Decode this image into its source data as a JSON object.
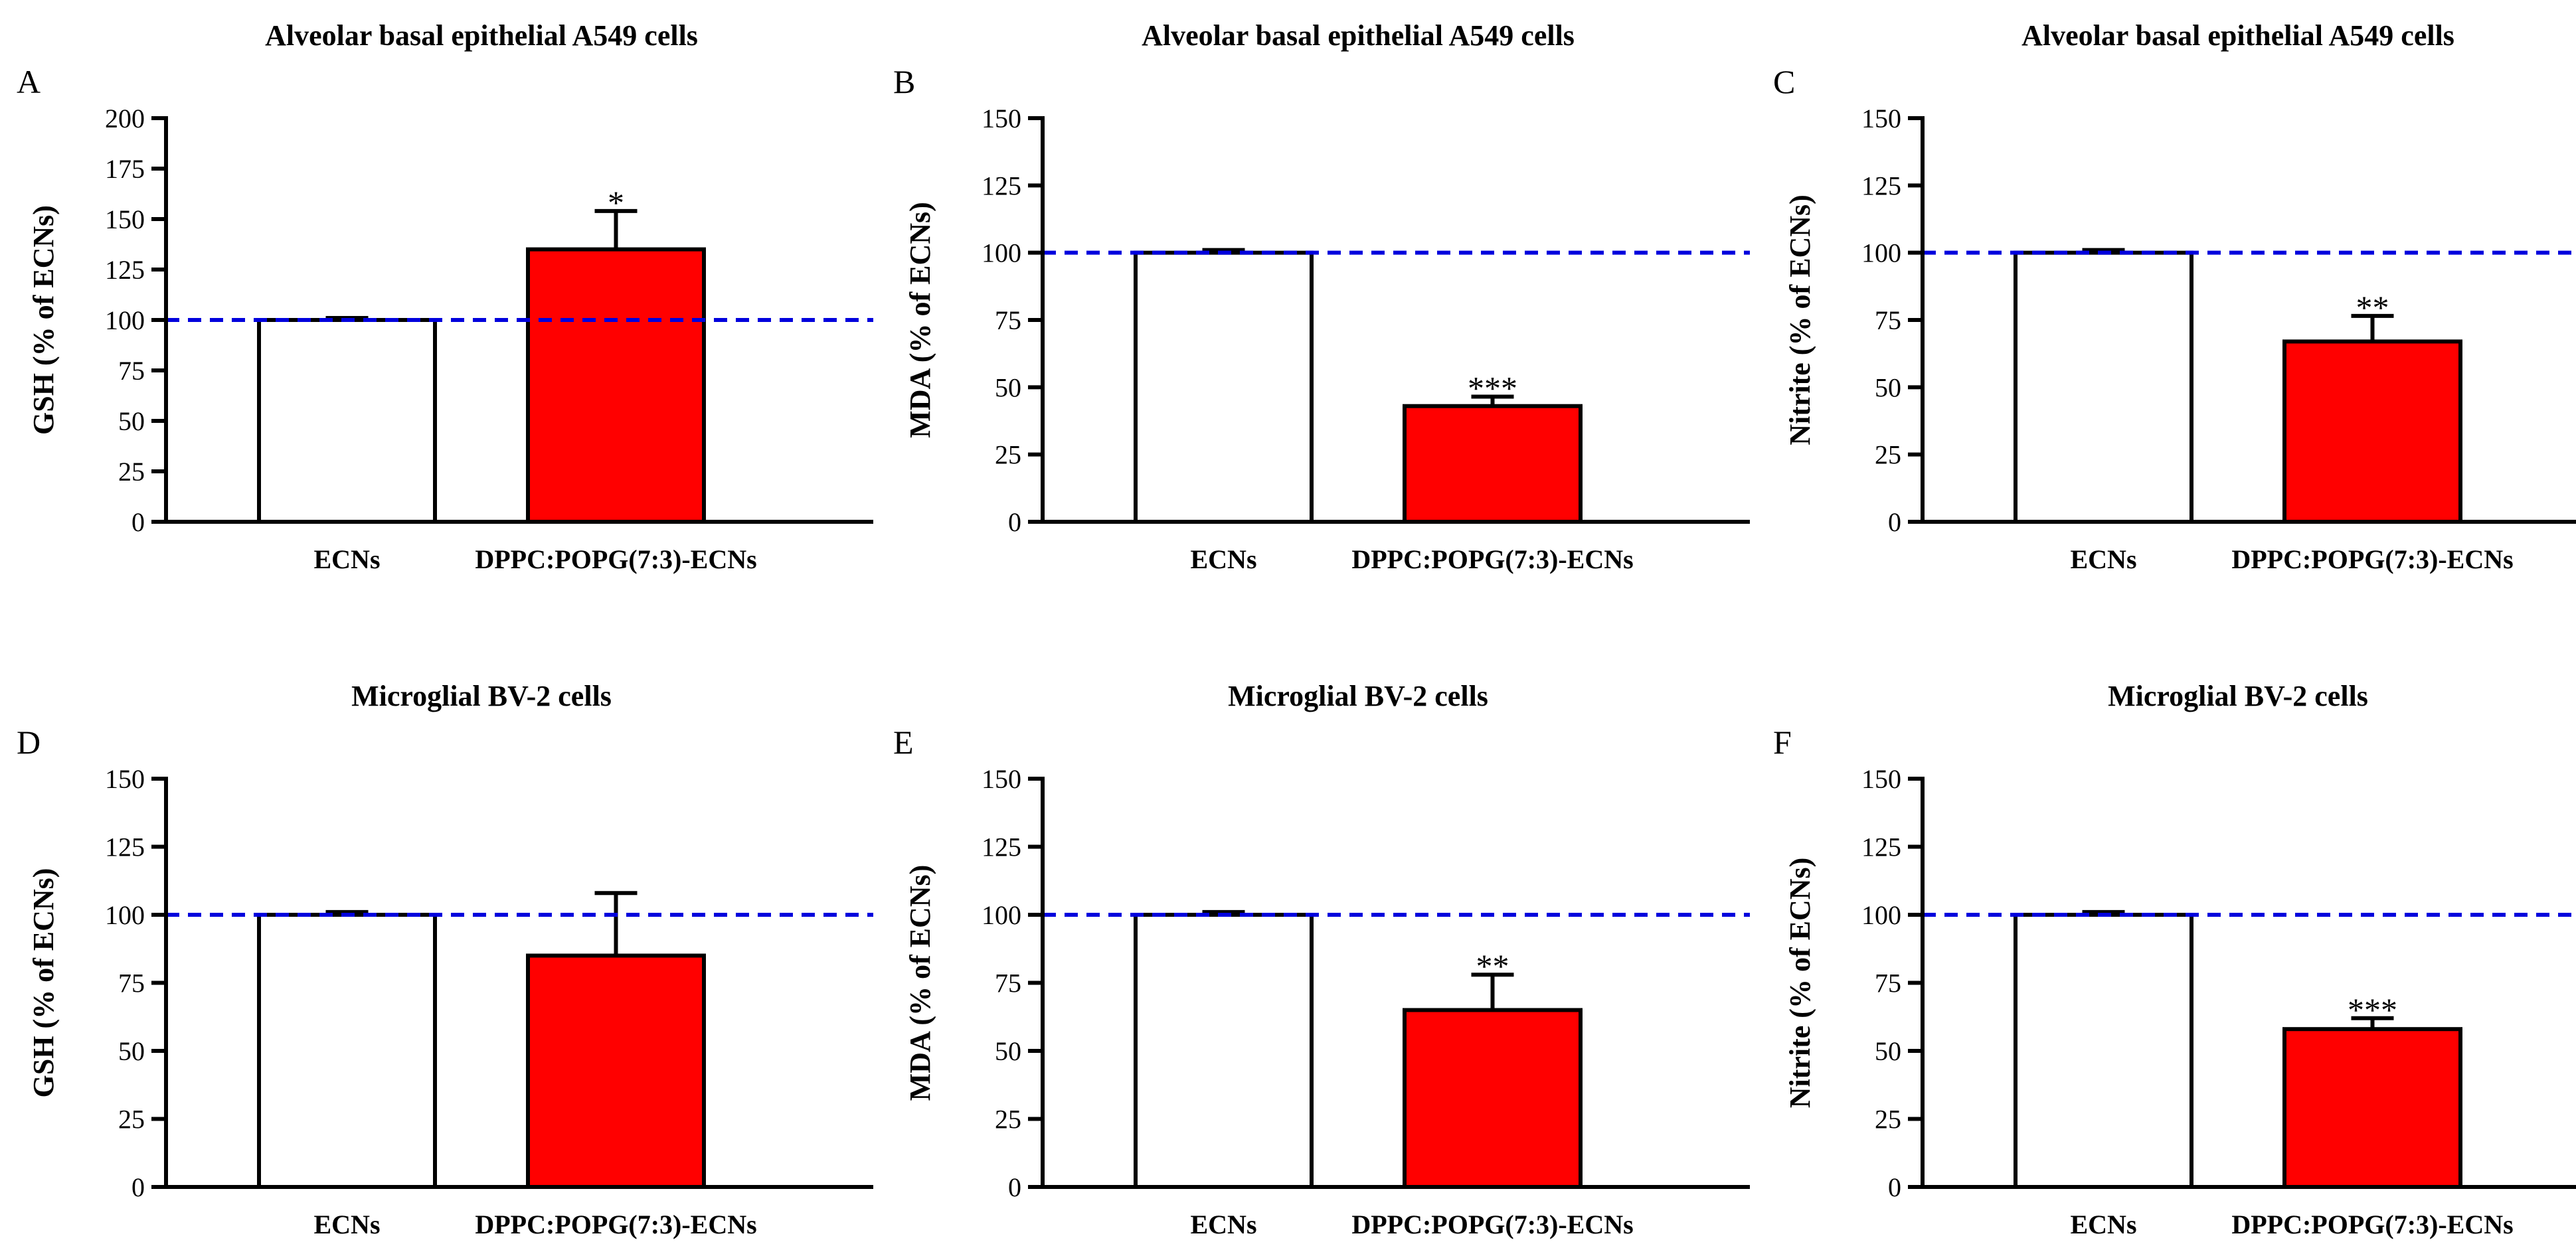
{
  "colors": {
    "control_fill": "#ffffff",
    "treatment_fill": "#ff0000",
    "reference_line": "#0000dd",
    "axis": "#000000"
  },
  "chart_data": [
    {
      "panel": "A",
      "type": "bar",
      "title": "Alveolar basal epithelial A549 cells",
      "ylabel": "GSH (% of ECNs)",
      "categories": [
        "ECNs",
        "DPPC:POPG(7:3)-ECNs"
      ],
      "values": [
        100,
        135
      ],
      "errors": [
        1,
        19
      ],
      "significance": [
        "",
        "*"
      ],
      "ylim": [
        0,
        200
      ],
      "yticks": [
        0,
        25,
        50,
        75,
        100,
        125,
        150,
        175,
        200
      ],
      "reference_line": 100
    },
    {
      "panel": "B",
      "type": "bar",
      "title": "Alveolar basal epithelial A549 cells",
      "ylabel": "MDA (% of ECNs)",
      "categories": [
        "ECNs",
        "DPPC:POPG(7:3)-ECNs"
      ],
      "values": [
        100,
        43
      ],
      "errors": [
        1,
        3.5
      ],
      "significance": [
        "",
        "***"
      ],
      "ylim": [
        0,
        150
      ],
      "yticks": [
        0,
        25,
        50,
        75,
        100,
        125,
        150
      ],
      "reference_line": 100
    },
    {
      "panel": "C",
      "type": "bar",
      "title": "Alveolar basal epithelial A549 cells",
      "ylabel": "Nitrite (% of ECNs)",
      "categories": [
        "ECNs",
        "DPPC:POPG(7:3)-ECNs"
      ],
      "values": [
        100,
        67
      ],
      "errors": [
        1,
        9.5
      ],
      "significance": [
        "",
        "**"
      ],
      "ylim": [
        0,
        150
      ],
      "yticks": [
        0,
        25,
        50,
        75,
        100,
        125,
        150
      ],
      "reference_line": 100
    },
    {
      "panel": "D",
      "type": "bar",
      "title": "Microglial BV-2 cells",
      "ylabel": "GSH (% of ECNs)",
      "categories": [
        "ECNs",
        "DPPC:POPG(7:3)-ECNs"
      ],
      "values": [
        100,
        85
      ],
      "errors": [
        1,
        23
      ],
      "significance": [
        "",
        ""
      ],
      "ylim": [
        0,
        150
      ],
      "yticks": [
        0,
        25,
        50,
        75,
        100,
        125,
        150
      ],
      "reference_line": 100
    },
    {
      "panel": "E",
      "type": "bar",
      "title": "Microglial BV-2 cells",
      "ylabel": "MDA (% of ECNs)",
      "categories": [
        "ECNs",
        "DPPC:POPG(7:3)-ECNs"
      ],
      "values": [
        100,
        65
      ],
      "errors": [
        1,
        13
      ],
      "significance": [
        "",
        "**"
      ],
      "ylim": [
        0,
        150
      ],
      "yticks": [
        0,
        25,
        50,
        75,
        100,
        125,
        150
      ],
      "reference_line": 100
    },
    {
      "panel": "F",
      "type": "bar",
      "title": "Microglial BV-2 cells",
      "ylabel": "Nitrite (% of ECNs)",
      "categories": [
        "ECNs",
        "DPPC:POPG(7:3)-ECNs"
      ],
      "values": [
        100,
        58
      ],
      "errors": [
        1,
        4
      ],
      "significance": [
        "",
        "***"
      ],
      "ylim": [
        0,
        150
      ],
      "yticks": [
        0,
        25,
        50,
        75,
        100,
        125,
        150
      ],
      "reference_line": 100
    }
  ]
}
